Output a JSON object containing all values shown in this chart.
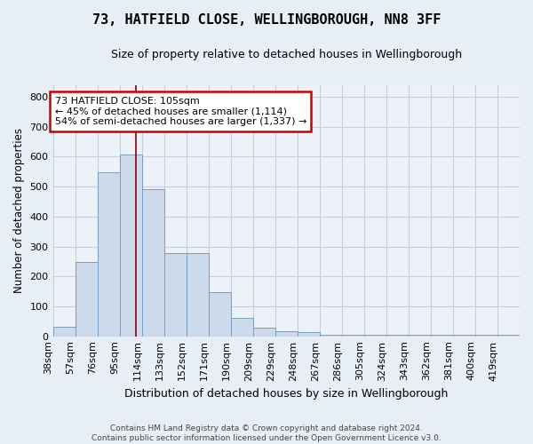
{
  "title": "73, HATFIELD CLOSE, WELLINGBOROUGH, NN8 3FF",
  "subtitle": "Size of property relative to detached houses in Wellingborough",
  "xlabel": "Distribution of detached houses by size in Wellingborough",
  "ylabel": "Number of detached properties",
  "footer1": "Contains HM Land Registry data © Crown copyright and database right 2024.",
  "footer2": "Contains public sector information licensed under the Open Government Licence v3.0.",
  "categories": [
    "38sqm",
    "57sqm",
    "76sqm",
    "95sqm",
    "114sqm",
    "133sqm",
    "152sqm",
    "171sqm",
    "190sqm",
    "209sqm",
    "229sqm",
    "248sqm",
    "267sqm",
    "286sqm",
    "305sqm",
    "324sqm",
    "343sqm",
    "362sqm",
    "381sqm",
    "400sqm",
    "419sqm"
  ],
  "bar_values": [
    32,
    248,
    548,
    606,
    493,
    278,
    278,
    148,
    62,
    30,
    18,
    13,
    5,
    5,
    5,
    5,
    5,
    5,
    5,
    5,
    5
  ],
  "bar_color": "#ccdaeb",
  "bar_edge_color": "#7a9ec0",
  "annotation_text": "73 HATFIELD CLOSE: 105sqm\n← 45% of detached houses are smaller (1,114)\n54% of semi-detached houses are larger (1,337) →",
  "annotation_box_color": "#ffffff",
  "annotation_box_edge": "#cc0000",
  "vline_x": 3.72,
  "vline_color": "#8b0000",
  "ylim": [
    0,
    840
  ],
  "yticks": [
    0,
    100,
    200,
    300,
    400,
    500,
    600,
    700,
    800
  ],
  "grid_color": "#c5cfe0",
  "bg_color": "#e8eef6",
  "plot_bg_color": "#edf1f8",
  "title_fontsize": 11,
  "subtitle_fontsize": 9,
  "ylabel_fontsize": 8.5,
  "xlabel_fontsize": 9,
  "tick_fontsize": 8,
  "ann_fontsize": 8,
  "footer_fontsize": 6.5
}
